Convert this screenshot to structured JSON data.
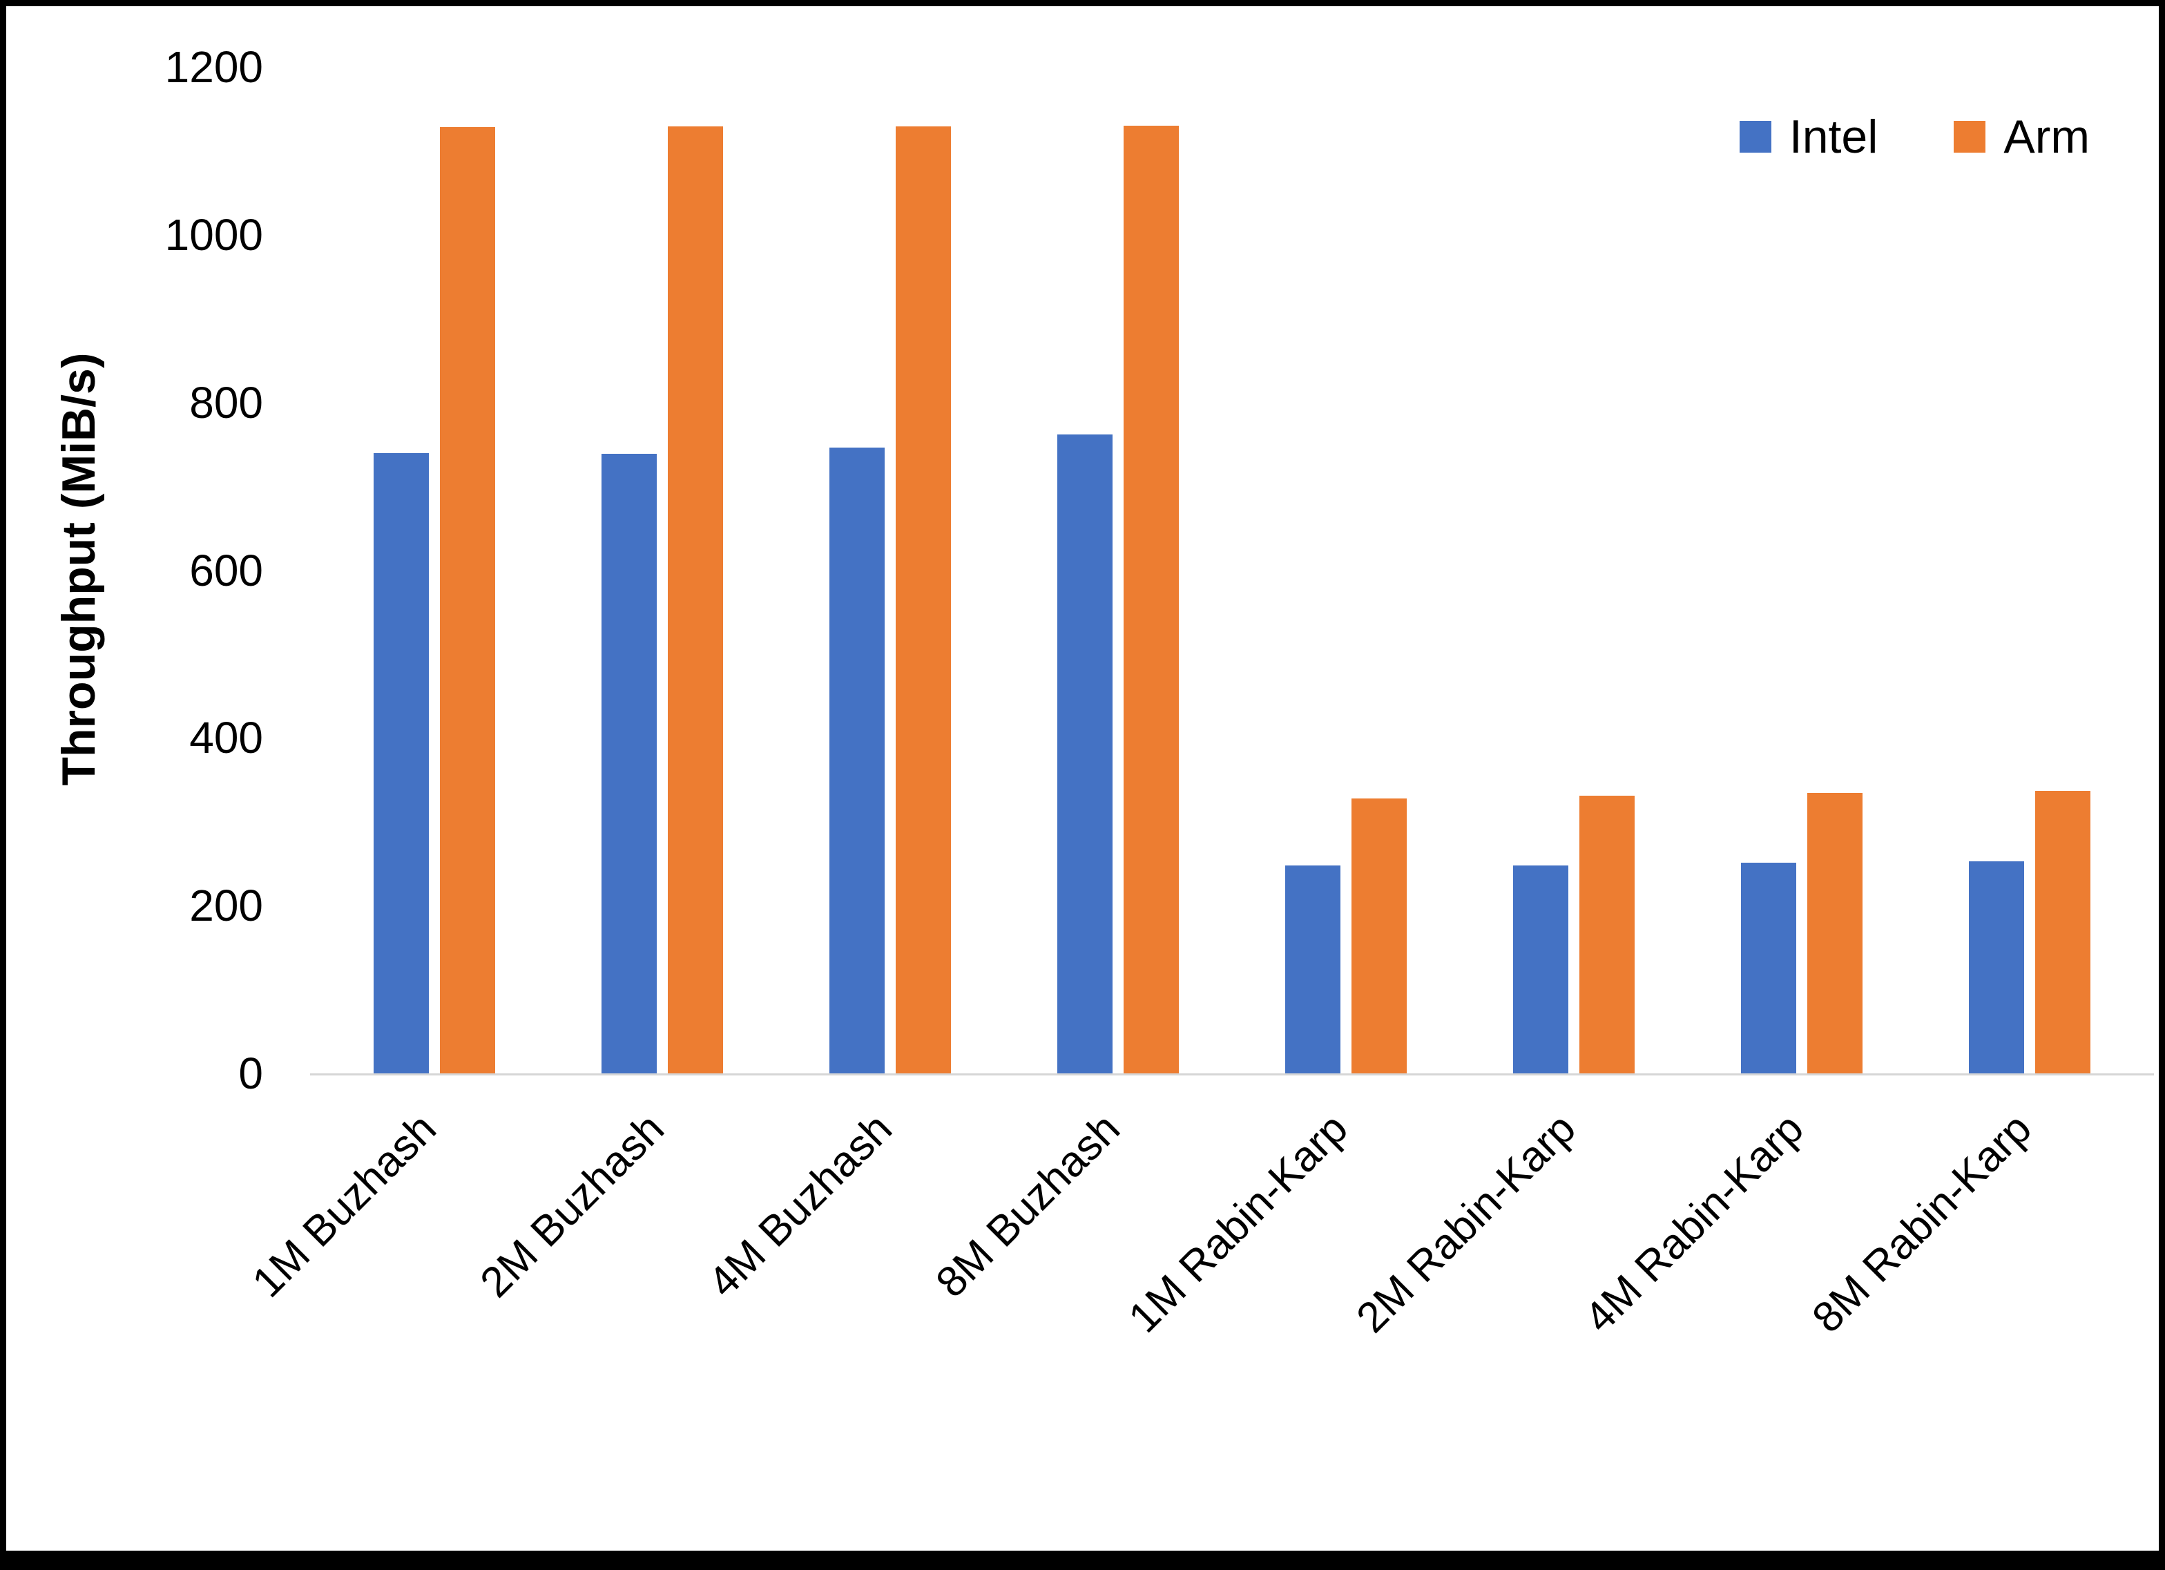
{
  "chart_data": {
    "type": "bar",
    "title": "",
    "xlabel": "",
    "ylabel": "Throughput (MiB/s)",
    "ylim": [
      0,
      1200
    ],
    "ytick_step": 200,
    "grid": false,
    "legend_position": "top-right",
    "categories": [
      "1M Buzhash",
      "2M Buzhash",
      "4M Buzhash",
      "8M Buzhash",
      "1M Rabin-Karp",
      "2M Rabin-Karp",
      "4M Rabin-Karp",
      "8M Rabin-Karp"
    ],
    "series": [
      {
        "name": "Intel",
        "color": "#4472C4",
        "values": [
          740,
          739,
          746,
          762,
          248,
          248,
          251,
          253
        ]
      },
      {
        "name": "Arm",
        "color": "#ED7D31",
        "values": [
          1128,
          1129,
          1129,
          1130,
          328,
          331,
          334,
          337
        ]
      }
    ]
  }
}
